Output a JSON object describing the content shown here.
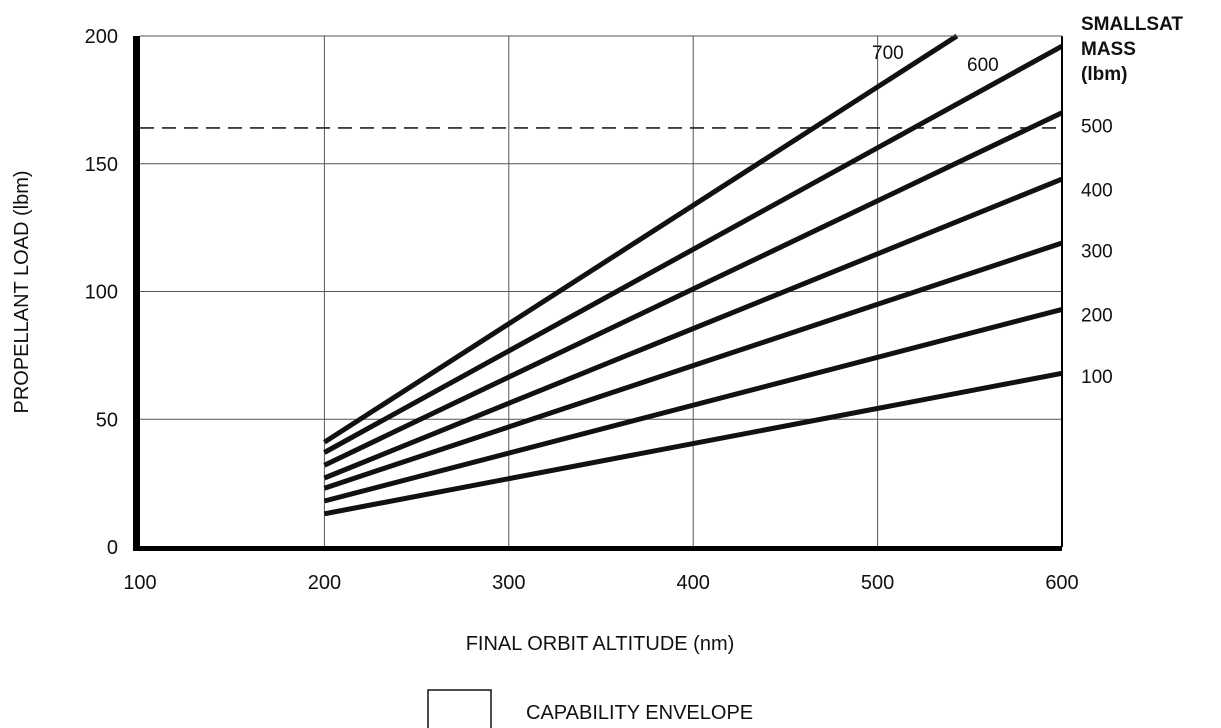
{
  "chart_data": {
    "type": "line",
    "title": "",
    "xlabel": "FINAL ORBIT ALTITUDE (nm)",
    "ylabel": "PROPELLANT LOAD (lbm)",
    "xlim": [
      100,
      600
    ],
    "ylim": [
      0,
      200
    ],
    "x_ticks": [
      "100",
      "200",
      "300",
      "400",
      "500",
      "600"
    ],
    "y_ticks": [
      "0",
      "50",
      "100",
      "150",
      "200"
    ],
    "grid": true,
    "right_axis": {
      "title_lines": [
        "SMALLSAT",
        "MASS",
        "(lbm)"
      ],
      "labels": [
        "500",
        "400",
        "300",
        "200",
        "100"
      ],
      "label_values": [
        500,
        400,
        300,
        200,
        100
      ],
      "label_y_positions": [
        165,
        140,
        116,
        91,
        67
      ]
    },
    "reference_line": {
      "style": "dashed",
      "y": 164
    },
    "series": [
      {
        "name": "700",
        "x": [
          200,
          543
        ],
        "y": [
          41,
          200
        ]
      },
      {
        "name": "600",
        "x": [
          200,
          600
        ],
        "y": [
          37,
          196
        ]
      },
      {
        "name": "500",
        "x": [
          200,
          600
        ],
        "y": [
          32,
          170
        ]
      },
      {
        "name": "400",
        "x": [
          200,
          600
        ],
        "y": [
          27,
          144
        ]
      },
      {
        "name": "300",
        "x": [
          200,
          600
        ],
        "y": [
          23,
          119
        ]
      },
      {
        "name": "200",
        "x": [
          200,
          600
        ],
        "y": [
          18,
          93
        ]
      },
      {
        "name": "100",
        "x": [
          200,
          600
        ],
        "y": [
          13,
          68
        ]
      }
    ],
    "inline_series_labels": [
      "700",
      "600"
    ],
    "legend": {
      "label": "CAPABILITY ENVELOPE",
      "placement": "bottom-center"
    }
  }
}
